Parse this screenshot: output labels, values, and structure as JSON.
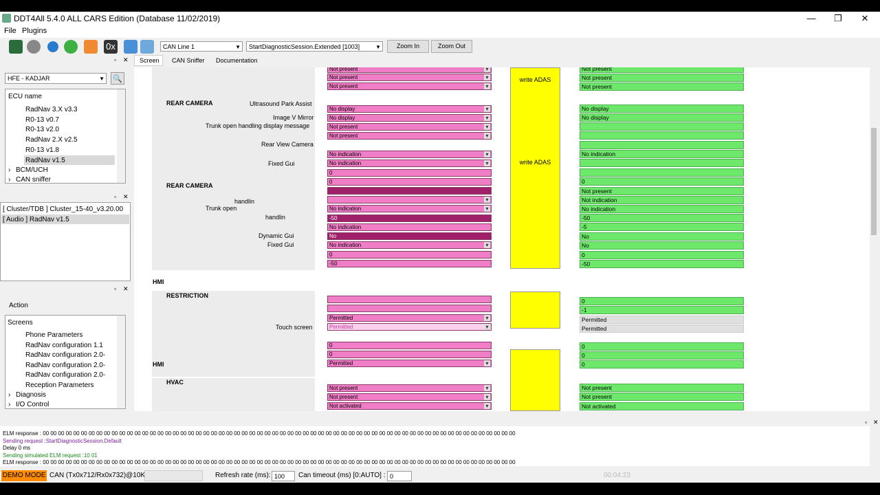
{
  "window": {
    "title": "DDT4All 5.4.0 ALL CARS Edition (Database 11/02/2019)"
  },
  "menu": [
    "File",
    "Plugins"
  ],
  "toolbar": {
    "can_line": "CAN Line 1",
    "session": "StartDiagnosticSession.Extended [1003]",
    "zoom_in": "Zoom In",
    "zoom_out": "Zoom Out",
    "hex_icon_text": "0x"
  },
  "sidebar": {
    "vehicle": "HFE - KADJAR",
    "ecu_header": "ECU name",
    "ecu_items": [
      "RadNav 3.X v3.3",
      "R0-13 v0.7",
      "R0-13 v2.0",
      "RadNav 2.X v2.5",
      "R0-13 v1.8",
      "RadNav v1.5",
      "BCM/UCH",
      "CAN sniffer"
    ],
    "loaded": [
      "[ Cluster/TDB ] Cluster_15-40_v3.20.00",
      "[ Audio ] RadNav v1.5"
    ],
    "action": "Action",
    "screens_header": "Screens",
    "screens": [
      "Phone Parameters",
      "RadNav configuration 1.1",
      "RadNav configuration 2.0-",
      "RadNav configuration 2.0-",
      "RadNav configuration 2.0-",
      "Reception Parameters",
      "Diagnosis",
      "I/O Control"
    ]
  },
  "tabs": [
    "Screen",
    "CAN Sniffer",
    "Documentation"
  ],
  "screen": {
    "sections": {
      "rear_camera": "REAR CAMERA",
      "rear_camera_2": "REAR CAMERA",
      "hmi": "HMI",
      "restriction": "RESTRICTION",
      "hmi_2": "HMI",
      "hvac": "HVAC"
    },
    "labels": [
      "Ultrasound Park Assist",
      "Image V Mirror",
      "Trunk open handling display message",
      "Rear View Camera",
      "Fixed Gui",
      "handlin",
      "Trunk open",
      "handlin",
      "Dynamic Gui",
      "Fixed Gui",
      "Touch screen"
    ],
    "write_adas": "write ADAS",
    "pink_values": [
      "Not present",
      "Not present",
      "Not present",
      "No display",
      "No display",
      "Not present",
      "Not present",
      "No indication",
      "No indication",
      "0",
      "0",
      "No indication",
      "-50",
      "No indication",
      "No",
      "No indication",
      "0",
      "-50",
      "Permitted",
      "Permitted",
      "0",
      "0",
      "Permitted",
      "Not present",
      "Not present",
      "Not activated"
    ],
    "green_values": [
      "Not present",
      "Not present",
      "Not present",
      "No display",
      "No display",
      "No indication",
      "0",
      "Not present",
      "Not indication",
      "No indication",
      "-50",
      "-5",
      "No",
      "No",
      "0",
      "-50",
      "0",
      "-1",
      "Permitted",
      "Permitted",
      "0",
      "0",
      "0",
      "Not present",
      "Not present",
      "Not activated"
    ]
  },
  "log": [
    {
      "text": "ELM response : 00 00 00 00 00 00 00 00 00 00 00 00 00 00 00 00 00 00 00 00 00 00 00 00 00 00 00 00 00 00 00 00 00 00 00 00 00 00 00 00 00 00 00 00 00 00 00 00 00 00 00 00 00 00 00 00 00 00 00 00 00 00",
      "color": "#000000"
    },
    {
      "text": "Sending request :StartDiagnosticSession.Default",
      "color": "#7a1f9a"
    },
    {
      "text": "Delay 0 ms",
      "color": "#000000"
    },
    {
      "text": "Sending simulated ELM request :10 01",
      "color": "#1a8a1a"
    },
    {
      "text": "ELM response : 00 00 00 00 00 00 00 00 00 00 00 00 00 00 00 00 00 00 00 00 00 00 00 00 00 00 00 00 00 00 00 00 00 00 00 00 00 00 00 00 00 00 00 00 00 00 00 00 00 00 00 00 00 00 00 00 00 00 00 00 00 00",
      "color": "#000000"
    }
  ],
  "status": {
    "demo": "DEMO MODE",
    "can": "CAN (Tx0x712/Rx0x732)@10K",
    "refresh_label": "Refresh rate (ms):",
    "refresh_value": "100",
    "timeout_label": "Can timeout (ms) [0:AUTO] :",
    "timeout_value": "0",
    "video_time": "00:04:23"
  },
  "colors": {
    "demo": "#ff8c00",
    "pink": "#f07ec6",
    "green": "#6ee86a",
    "yellow": "#ffff00"
  }
}
